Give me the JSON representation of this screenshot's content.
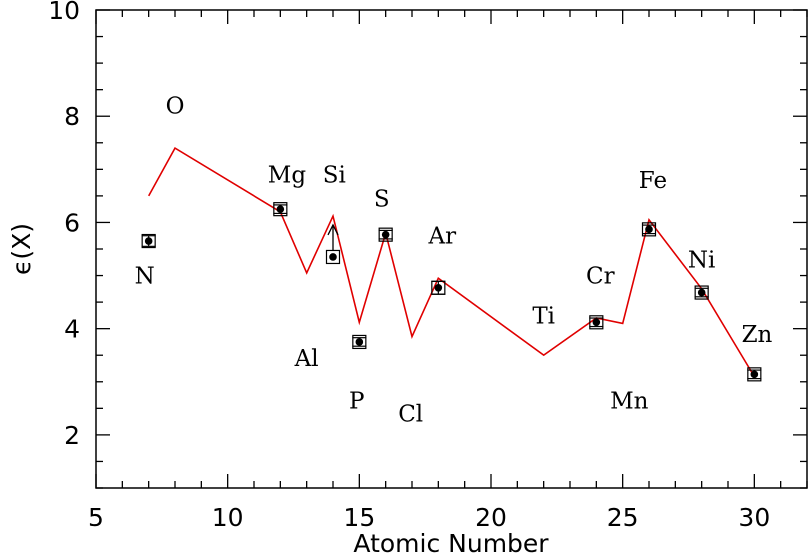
{
  "chart_data": {
    "type": "scatter",
    "xlabel": "Atomic Number",
    "ylabel": "ϵ(X)",
    "xlim": [
      5,
      32
    ],
    "ylim": [
      1,
      10
    ],
    "x_ticks": [
      5,
      10,
      15,
      20,
      25,
      30
    ],
    "y_ticks": [
      2,
      4,
      6,
      8,
      10
    ],
    "grid": false,
    "line": {
      "color": "#e00000",
      "x": [
        7,
        8,
        12,
        13,
        14,
        15,
        16,
        17,
        18,
        22,
        24,
        25,
        26,
        28,
        30
      ],
      "y": [
        6.5,
        7.4,
        6.2,
        5.05,
        6.12,
        4.12,
        5.8,
        3.85,
        4.95,
        3.5,
        4.2,
        4.1,
        6.05,
        4.75,
        3.1
      ]
    },
    "points": [
      {
        "x": 7,
        "y": 5.65,
        "err": 0.1
      },
      {
        "x": 12,
        "y": 6.25,
        "err": 0.08
      },
      {
        "x": 14,
        "y": 5.35,
        "err": 0.0,
        "lower_limit": true
      },
      {
        "x": 15,
        "y": 3.75,
        "err": 0.08
      },
      {
        "x": 16,
        "y": 5.77,
        "err": 0.08
      },
      {
        "x": 18,
        "y": 4.77,
        "err": 0.12
      },
      {
        "x": 24,
        "y": 4.12,
        "err": 0.08
      },
      {
        "x": 26,
        "y": 5.87,
        "err": 0.08
      },
      {
        "x": 28,
        "y": 4.68,
        "err": 0.08
      },
      {
        "x": 30,
        "y": 3.14,
        "err": 0.08
      }
    ],
    "element_labels": [
      {
        "text": "N",
        "x": 6.85,
        "y": 5.0
      },
      {
        "text": "O",
        "x": 8.0,
        "y": 8.2
      },
      {
        "text": "Mg",
        "x": 12.25,
        "y": 6.9
      },
      {
        "text": "Si",
        "x": 14.05,
        "y": 6.9
      },
      {
        "text": "S",
        "x": 15.85,
        "y": 6.45
      },
      {
        "text": "Ar",
        "x": 18.15,
        "y": 5.75
      },
      {
        "text": "Al",
        "x": 13.0,
        "y": 3.45
      },
      {
        "text": "P",
        "x": 14.9,
        "y": 2.65
      },
      {
        "text": "Cl",
        "x": 16.95,
        "y": 2.4
      },
      {
        "text": "Ti",
        "x": 22.0,
        "y": 4.25
      },
      {
        "text": "Cr",
        "x": 24.15,
        "y": 5.0
      },
      {
        "text": "Mn",
        "x": 25.25,
        "y": 2.65
      },
      {
        "text": "Fe",
        "x": 26.15,
        "y": 6.8
      },
      {
        "text": "Ni",
        "x": 28.0,
        "y": 5.3
      },
      {
        "text": "Zn",
        "x": 30.1,
        "y": 3.9
      }
    ]
  }
}
